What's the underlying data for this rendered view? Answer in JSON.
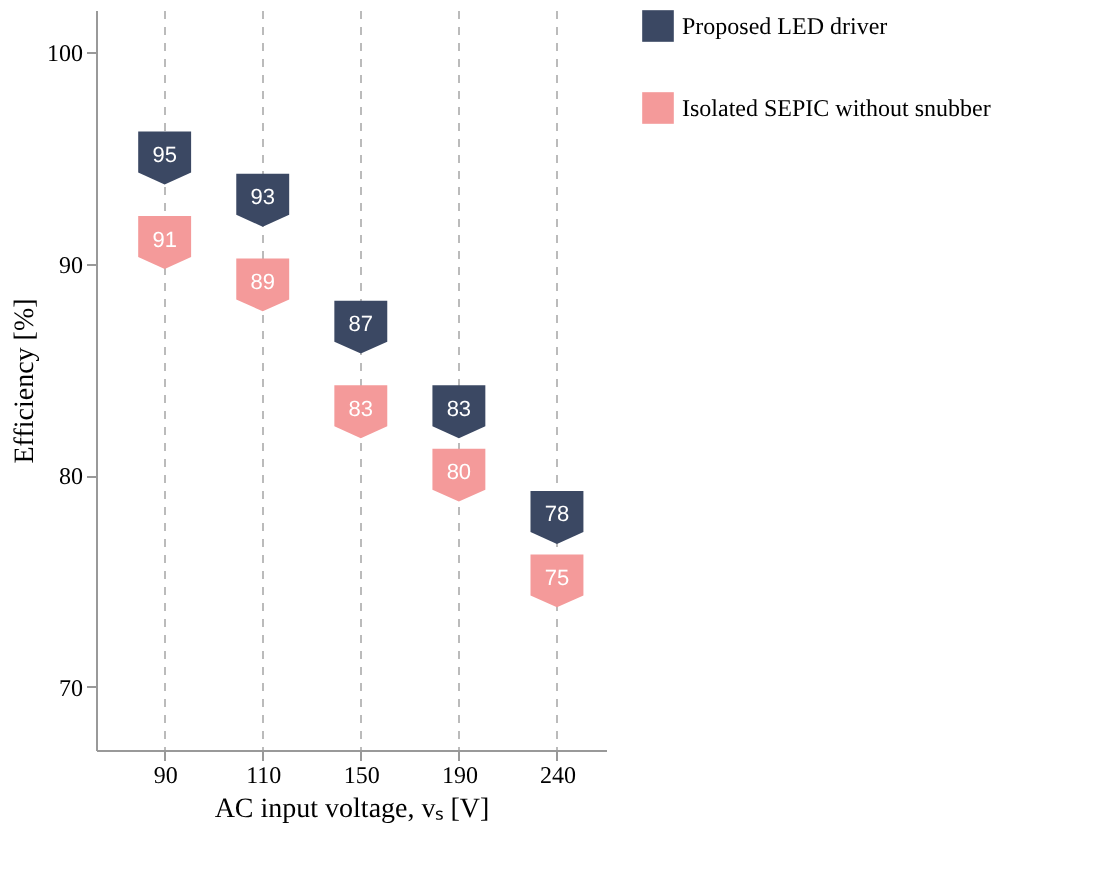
{
  "chart_data": {
    "type": "scatter",
    "xlabel": "AC input voltage, vₛ [V]",
    "ylabel": "Efficiency [%]",
    "categories": [
      "90",
      "110",
      "150",
      "190",
      "240"
    ],
    "series": [
      {
        "name": "Proposed LED driver",
        "color": "#3b4863",
        "values": [
          95,
          93,
          87,
          83,
          78
        ]
      },
      {
        "name": "Isolated SEPIC without snubber",
        "color": "#f49a9a",
        "values": [
          91,
          89,
          83,
          80,
          75
        ]
      }
    ],
    "ylim": [
      67,
      102
    ],
    "yticks": [
      70,
      80,
      90,
      100
    ],
    "grid": "x",
    "legend": "right",
    "data_labels": true
  }
}
